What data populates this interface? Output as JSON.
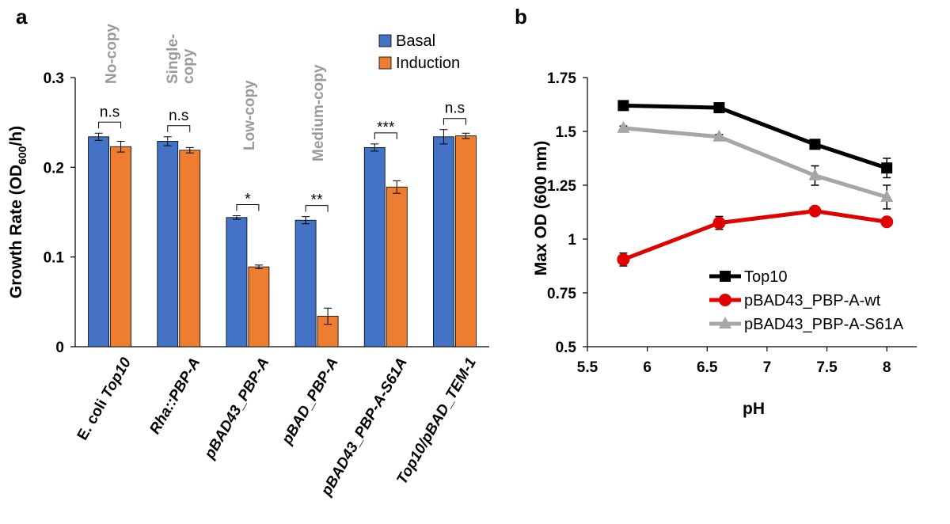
{
  "chart_data": [
    {
      "panel": "a",
      "type": "bar",
      "ylabel": "Growth Rate (OD600/h)",
      "ylabel_parts": {
        "pre": "Growth Rate (OD",
        "sub": "600",
        "post": "/h)"
      },
      "ylim": [
        0,
        0.3
      ],
      "yticks": [
        {
          "value": 0,
          "label": "0"
        },
        {
          "value": 0.1,
          "label": "0.1"
        },
        {
          "value": 0.2,
          "label": "0.2"
        },
        {
          "value": 0.3,
          "label": "0.3"
        }
      ],
      "categories": [
        {
          "label": "E. coli Top10",
          "parts": [
            {
              "t": "E. coli",
              "style": "normal"
            },
            {
              "t": " Top10",
              "style": "italic"
            }
          ]
        },
        {
          "label": "Rha::PBP-A",
          "parts": [
            {
              "t": "Rha::PBP-A",
              "style": "italic"
            }
          ]
        },
        {
          "label": "pBAD43_PBP-A",
          "parts": [
            {
              "t": "pBAD43_PBP-A",
              "style": "italic"
            }
          ]
        },
        {
          "label": "pBAD_PBP-A",
          "parts": [
            {
              "t": "pBAD_PBP-A",
              "style": "italic"
            }
          ]
        },
        {
          "label": "pBAD43_PBP-A-S61A",
          "parts": [
            {
              "t": "pBAD43_PBP-A-S61A",
              "style": "italic"
            }
          ]
        },
        {
          "label": "Top10/pBAD_TEM-1",
          "parts": [
            {
              "t": "Top10/pBAD_TEM-1",
              "style": "italic"
            }
          ]
        }
      ],
      "series": [
        {
          "name": "Basal",
          "color": "#4472c4",
          "values": [
            0.234,
            0.229,
            0.144,
            0.141,
            0.222,
            0.234
          ],
          "errors": [
            0.004,
            0.005,
            0.002,
            0.004,
            0.004,
            0.008
          ]
        },
        {
          "name": "Induction",
          "color": "#ed7d31",
          "values": [
            0.223,
            0.219,
            0.089,
            0.034,
            0.178,
            0.235
          ],
          "errors": [
            0.006,
            0.003,
            0.002,
            0.009,
            0.007,
            0.003
          ]
        }
      ],
      "significance": [
        "n.s",
        "n.s",
        "*",
        "**",
        "***",
        "n.s"
      ],
      "copy_annotations": [
        {
          "category": 0,
          "text": [
            "No-copy"
          ]
        },
        {
          "category": 1,
          "text": [
            "Single-",
            "copy"
          ]
        },
        {
          "category": 2,
          "text": [
            "Low-copy"
          ]
        },
        {
          "category": 3,
          "text": [
            "Medium-copy"
          ]
        }
      ],
      "legend": "top-right"
    },
    {
      "panel": "b",
      "type": "line",
      "xlabel": "pH",
      "ylabel": "Max OD (600 nm)",
      "xlim": [
        5.5,
        8.25
      ],
      "ylim": [
        0.5,
        1.75
      ],
      "xticks": [
        {
          "value": 5.5,
          "label": "5.5"
        },
        {
          "value": 6,
          "label": "6"
        },
        {
          "value": 6.5,
          "label": "6.5"
        },
        {
          "value": 7,
          "label": "7"
        },
        {
          "value": 7.5,
          "label": "7.5"
        },
        {
          "value": 8,
          "label": "8"
        }
      ],
      "yticks": [
        {
          "value": 0.5,
          "label": "0.5"
        },
        {
          "value": 0.75,
          "label": "0.75"
        },
        {
          "value": 1,
          "label": "1"
        },
        {
          "value": 1.25,
          "label": "1.25"
        },
        {
          "value": 1.5,
          "label": "1.5"
        },
        {
          "value": 1.75,
          "label": "1.75"
        }
      ],
      "x": [
        5.8,
        6.6,
        7.4,
        8.0
      ],
      "series": [
        {
          "name": "Top10",
          "color": "#000000",
          "marker": "square",
          "values": [
            1.62,
            1.61,
            1.44,
            1.33
          ],
          "errors": [
            0.01,
            0.01,
            0.015,
            0.045
          ]
        },
        {
          "name": "pBAD43_PBP-A-wt",
          "color": "#e00000",
          "marker": "circle",
          "values": [
            0.905,
            1.075,
            1.13,
            1.08
          ],
          "errors": [
            0.03,
            0.03,
            0.01,
            0.01
          ]
        },
        {
          "name": "pBAD43_PBP-A-S61A",
          "color": "#a6a6a6",
          "marker": "triangle",
          "values": [
            1.515,
            1.475,
            1.295,
            1.195
          ],
          "errors": [
            0.01,
            0.01,
            0.045,
            0.055
          ]
        }
      ],
      "legend": "bottom-right"
    }
  ]
}
